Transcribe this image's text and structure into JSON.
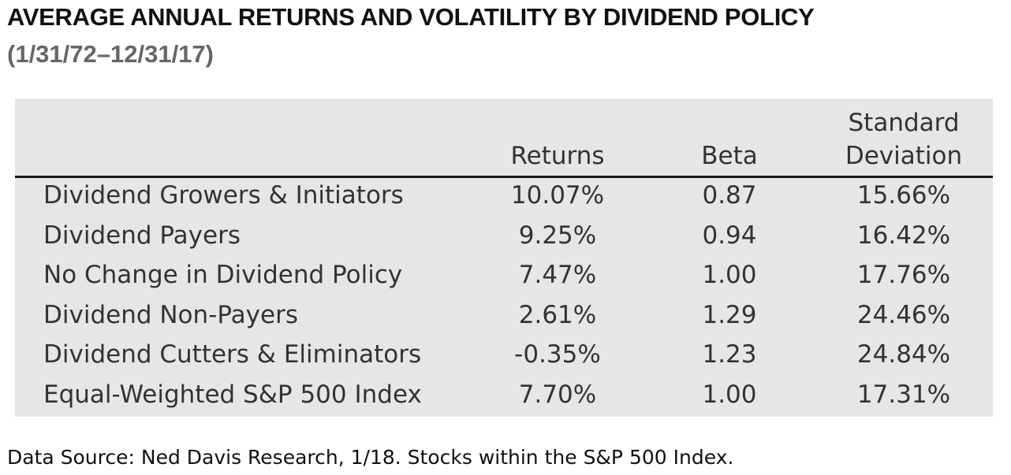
{
  "title": "AVERAGE ANNUAL RETURNS AND VOLATILITY BY DIVIDEND POLICY",
  "subtitle": "(1/31/72–12/31/17)",
  "footer": "Data Source: Ned Davis Research, 1/18. Stocks within the S&P 500 Index.",
  "colors": {
    "panel_background": "#e6e6e6",
    "header_rule": "#1a1a1a",
    "subtitle": "#666666",
    "cell_text": "#333333"
  },
  "chart_data": {
    "type": "table",
    "title": "AVERAGE ANNUAL RETURNS AND VOLATILITY BY DIVIDEND POLICY",
    "subtitle": "(1/31/72–12/31/17)",
    "columns": [
      {
        "line1": "",
        "line2": "Returns"
      },
      {
        "line1": "",
        "line2": "Beta"
      },
      {
        "line1": "Standard",
        "line2": "Deviation"
      }
    ],
    "rows": [
      {
        "label": "Dividend Growers & Initiators",
        "returns": "10.07%",
        "beta": "0.87",
        "std_dev": "15.66%"
      },
      {
        "label": "Dividend Payers",
        "returns": "9.25%",
        "beta": "0.94",
        "std_dev": "16.42%"
      },
      {
        "label": "No Change in Dividend Policy",
        "returns": "7.47%",
        "beta": "1.00",
        "std_dev": "17.76%"
      },
      {
        "label": "Dividend Non-Payers",
        "returns": "2.61%",
        "beta": "1.29",
        "std_dev": "24.46%"
      },
      {
        "label": "Dividend Cutters & Eliminators",
        "returns": "-0.35%",
        "beta": "1.23",
        "std_dev": "24.84%"
      },
      {
        "label": "Equal-Weighted S&P 500 Index",
        "returns": "7.70%",
        "beta": "1.00",
        "std_dev": "17.31%"
      }
    ]
  }
}
